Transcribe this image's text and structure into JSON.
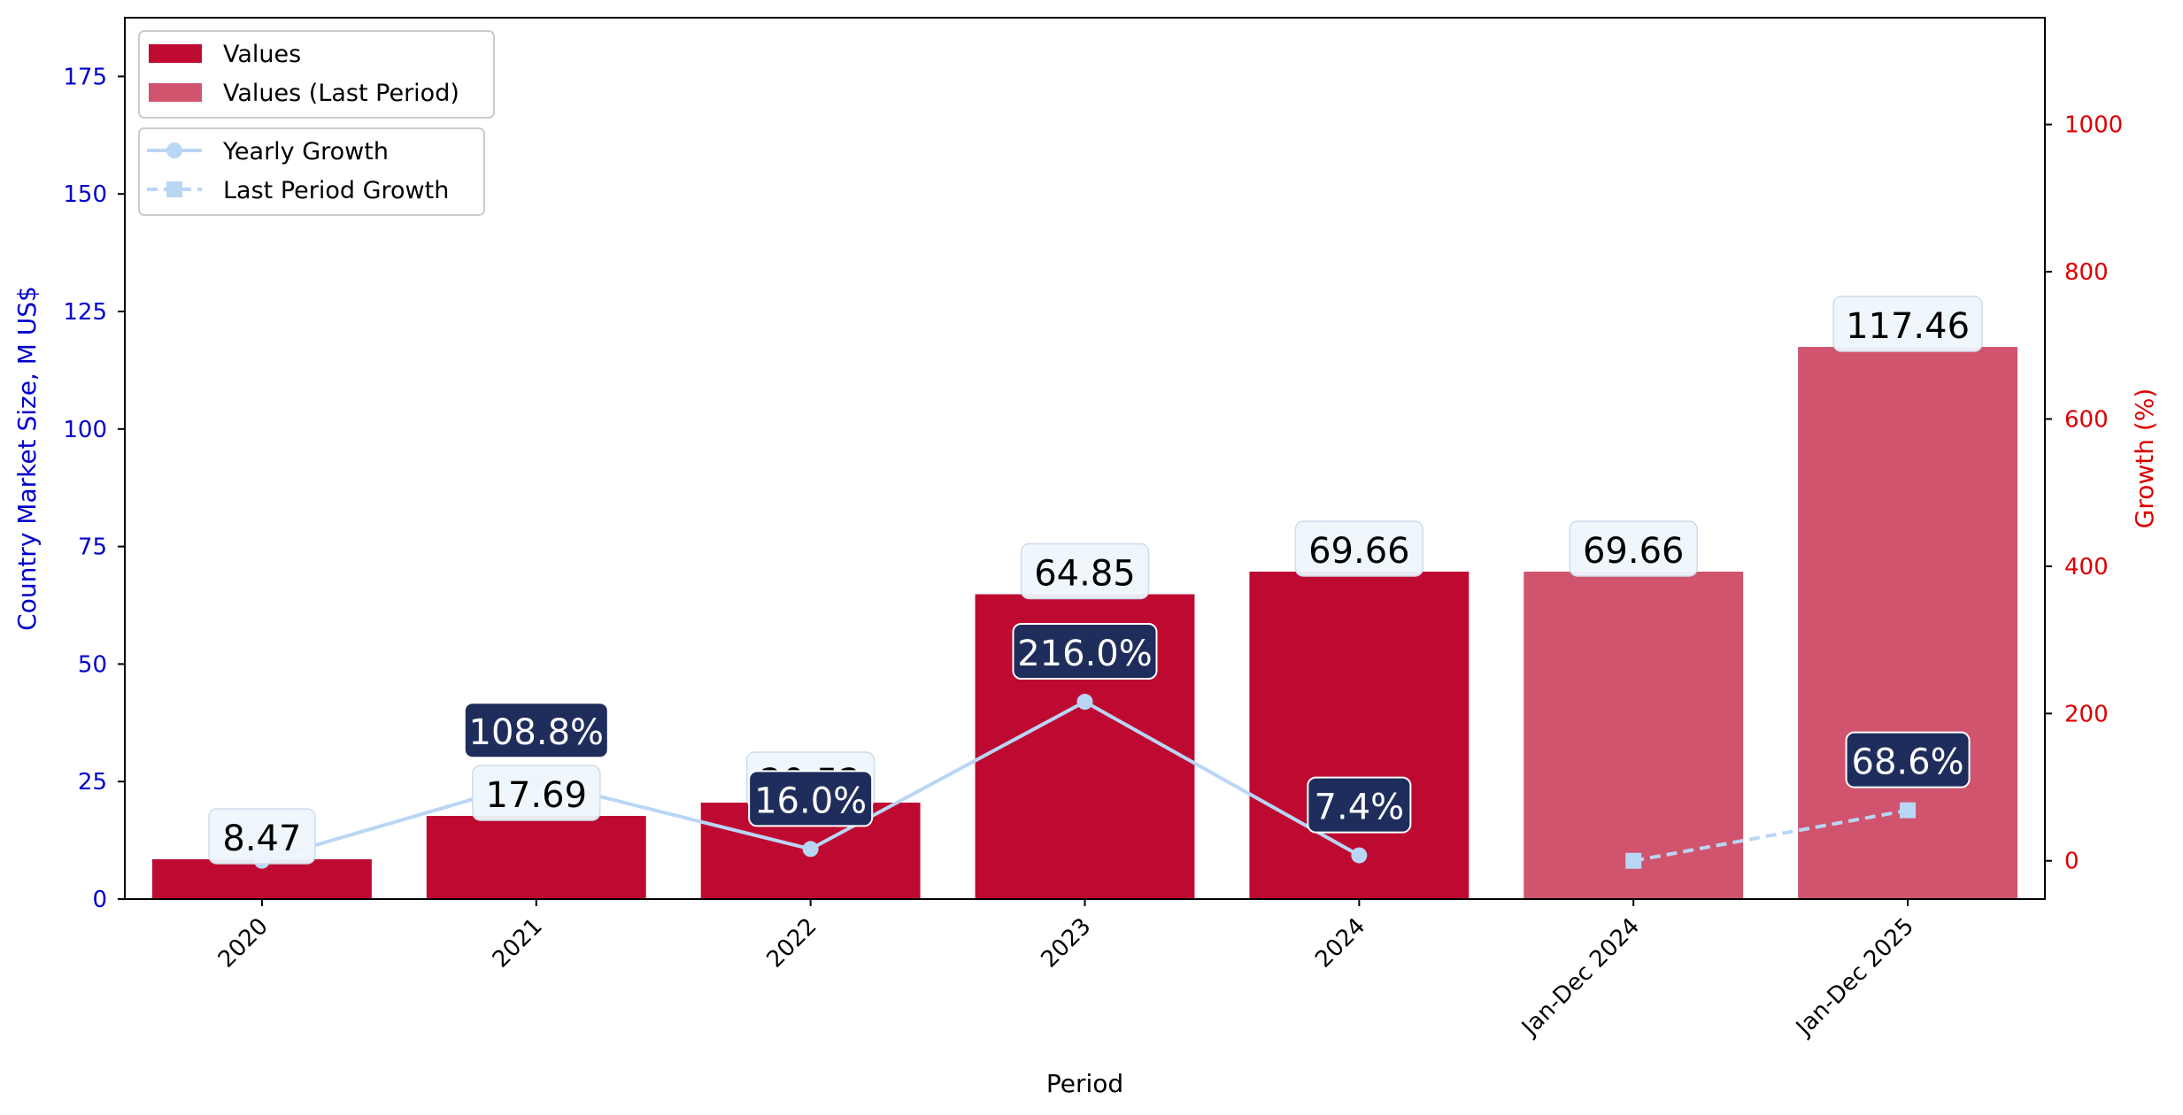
{
  "chart_data": {
    "type": "bar",
    "categories": [
      "2020",
      "2021",
      "2022",
      "2023",
      "2024",
      "Jan-Dec 2024",
      "Jan-Dec 2025"
    ],
    "series": [
      {
        "name": "Values",
        "values": [
          8.47,
          17.69,
          20.52,
          64.85,
          69.66,
          null,
          null
        ],
        "color": "#be0a31"
      },
      {
        "name": "Values (Last Period)",
        "values": [
          null,
          null,
          null,
          null,
          null,
          69.66,
          117.46
        ],
        "color": "#d0546d"
      },
      {
        "name": "Yearly Growth",
        "axis": "right",
        "values": [
          0,
          108.8,
          16.0,
          216.0,
          7.4,
          null,
          null
        ],
        "color": "#b9d6f5"
      },
      {
        "name": "Last Period Growth",
        "axis": "right",
        "values": [
          null,
          null,
          null,
          null,
          null,
          0,
          68.6
        ],
        "color": "#b9d6f5"
      }
    ],
    "value_labels": [
      "8.47",
      "17.69",
      "20.52",
      "64.85",
      "69.66",
      "69.66",
      "117.46"
    ],
    "growth_labels": [
      {
        "index": 1,
        "text": "108.8%"
      },
      {
        "index": 2,
        "text": "16.0%"
      },
      {
        "index": 3,
        "text": "216.0%"
      },
      {
        "index": 4,
        "text": "7.4%"
      },
      {
        "index": 6,
        "text": "68.6%"
      }
    ],
    "xlabel": "Period",
    "ylabel": "Country Market Size, M US$",
    "y2label": "Growth (%)",
    "ylim": [
      0,
      187.5
    ],
    "y2lim": [
      -52,
      1145
    ],
    "yticks": [
      0,
      25,
      50,
      75,
      100,
      125,
      150,
      175
    ],
    "y2ticks": [
      0,
      200,
      400,
      600,
      800,
      1000
    ],
    "grid": false,
    "legend_placement": "top-left",
    "colors": {
      "left_axis": "#0000cc",
      "right_axis": "#dd0000",
      "label_box": "#eef5fc",
      "growth_box": "#1f2d5c"
    }
  }
}
